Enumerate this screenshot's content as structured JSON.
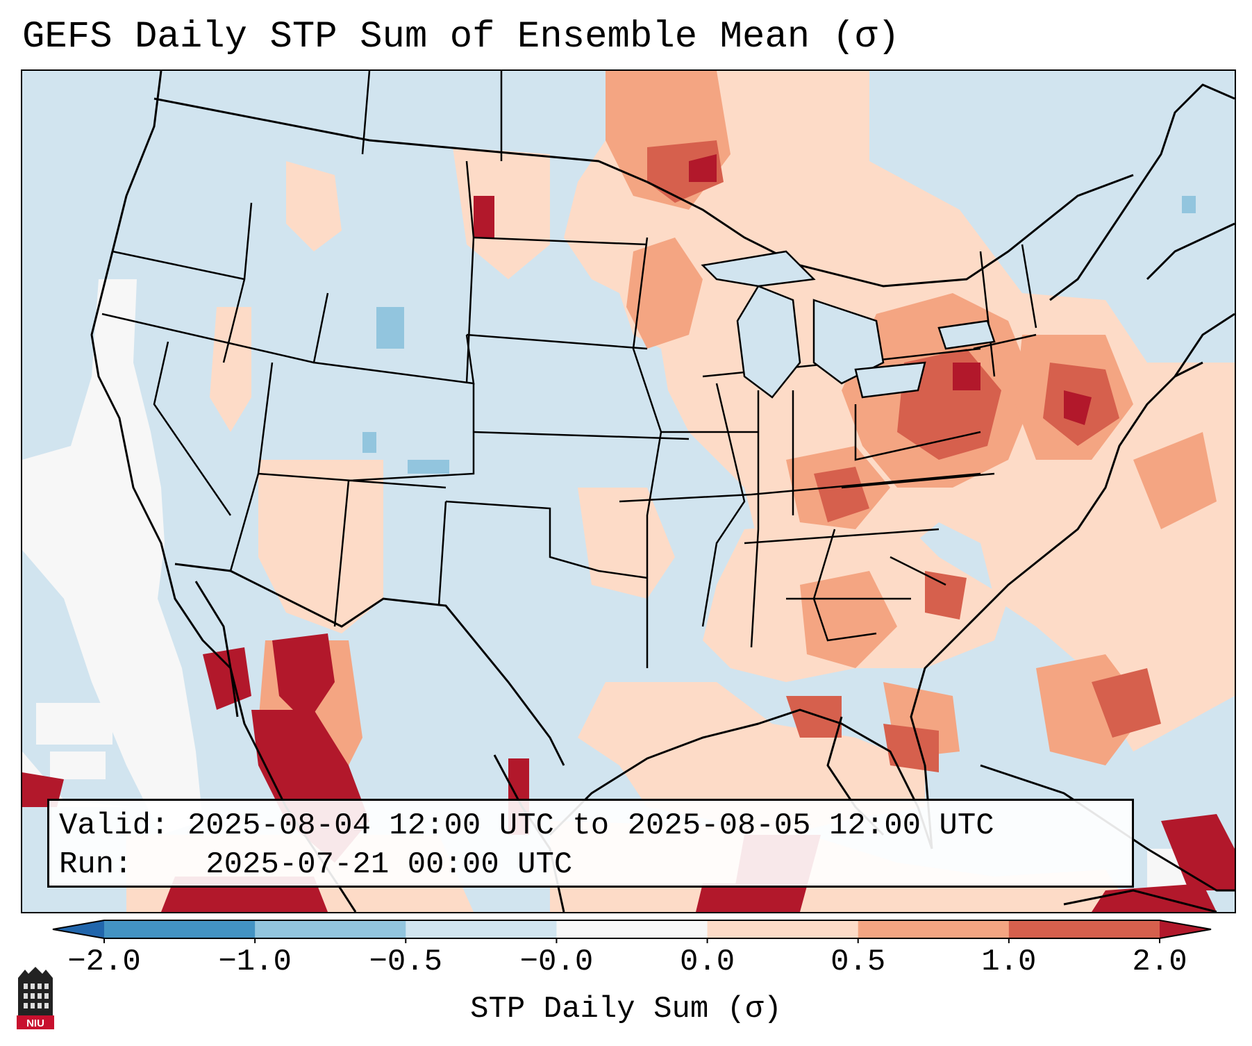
{
  "title": "GEFS Daily STP Sum of Ensemble Mean (σ)",
  "info": {
    "valid_label": "Valid:",
    "valid_text": "2025-08-04 12:00 UTC to 2025-08-05 12:00 UTC",
    "run_label": "Run:",
    "run_text": "2025-07-21 00:00 UTC"
  },
  "colorbar": {
    "label": "STP Daily Sum (σ)",
    "tick_labels": [
      "−2.0",
      "−1.0",
      "−0.5",
      "−0.0",
      "0.0",
      "0.5",
      "1.0",
      "2.0"
    ],
    "bins": [
      {
        "range": "< -2.0",
        "color": "#2166ac"
      },
      {
        "range": "-2.0 to -1.0",
        "color": "#4393c3"
      },
      {
        "range": "-1.0 to -0.5",
        "color": "#92c5de"
      },
      {
        "range": "-0.5 to -0.0",
        "color": "#d1e5f0"
      },
      {
        "range": "-0.0 to 0.0",
        "color": "#f7f7f7"
      },
      {
        "range": "0.0 to 0.5",
        "color": "#fddbc7"
      },
      {
        "range": "0.5 to 1.0",
        "color": "#f4a582"
      },
      {
        "range": "1.0 to 2.0",
        "color": "#d6604d"
      },
      {
        "range": "> 2.0",
        "color": "#b2182b"
      }
    ]
  },
  "logo": {
    "text": "NIU",
    "color": "#c8102e"
  },
  "map": {
    "projection": "Lambert Conformal, CONUS",
    "background_color": "#d1e4ef",
    "highlight_regions": [
      {
        "name": "Northern Plains / Upper Midwest",
        "level": "0.0 to 1.0"
      },
      {
        "name": "Pennsylvania / New York",
        "level": "1.0 to 2.0"
      },
      {
        "name": "Ohio Valley",
        "level": "0.5 to 1.0"
      },
      {
        "name": "Sierra Madre Occidental (Mexico)",
        "level": "> 2.0"
      },
      {
        "name": "Gulf Coast",
        "level": "0.0 to 1.0"
      },
      {
        "name": "Southeast / Georgia",
        "level": "0.5 to 1.0"
      },
      {
        "name": "Western Atlantic",
        "level": "0.0 to 2.0"
      },
      {
        "name": "Pacific offshore",
        "level": "-0.0 to 0.0"
      }
    ]
  }
}
